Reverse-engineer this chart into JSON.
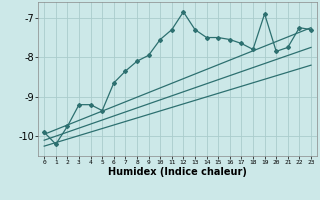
{
  "xlabel": "Humidex (Indice chaleur)",
  "ylabel": "",
  "bg_color": "#cce8e8",
  "grid_color": "#aacccc",
  "line_color": "#2d7070",
  "xlim": [
    -0.5,
    23.5
  ],
  "ylim": [
    -10.5,
    -6.6
  ],
  "yticks": [
    -10,
    -9,
    -8,
    -7
  ],
  "xticks": [
    0,
    1,
    2,
    3,
    4,
    5,
    6,
    7,
    8,
    9,
    10,
    11,
    12,
    13,
    14,
    15,
    16,
    17,
    18,
    19,
    20,
    21,
    22,
    23
  ],
  "data_x": [
    0,
    1,
    2,
    3,
    4,
    5,
    6,
    7,
    8,
    9,
    10,
    11,
    12,
    13,
    14,
    15,
    16,
    17,
    18,
    19,
    20,
    21,
    22,
    23
  ],
  "data_y_main": [
    -9.9,
    -10.2,
    -9.75,
    -9.2,
    -9.2,
    -9.35,
    -8.65,
    -8.35,
    -8.1,
    -7.95,
    -7.55,
    -7.3,
    -6.85,
    -7.3,
    -7.5,
    -7.5,
    -7.55,
    -7.65,
    -7.8,
    -6.9,
    -7.85,
    -7.75,
    -7.25,
    -7.3
  ],
  "trend1_x": [
    0,
    23
  ],
  "trend1_y": [
    -9.95,
    -7.25
  ],
  "trend2_x": [
    0,
    23
  ],
  "trend2_y": [
    -10.1,
    -7.75
  ],
  "trend3_x": [
    0,
    23
  ],
  "trend3_y": [
    -10.25,
    -8.2
  ]
}
